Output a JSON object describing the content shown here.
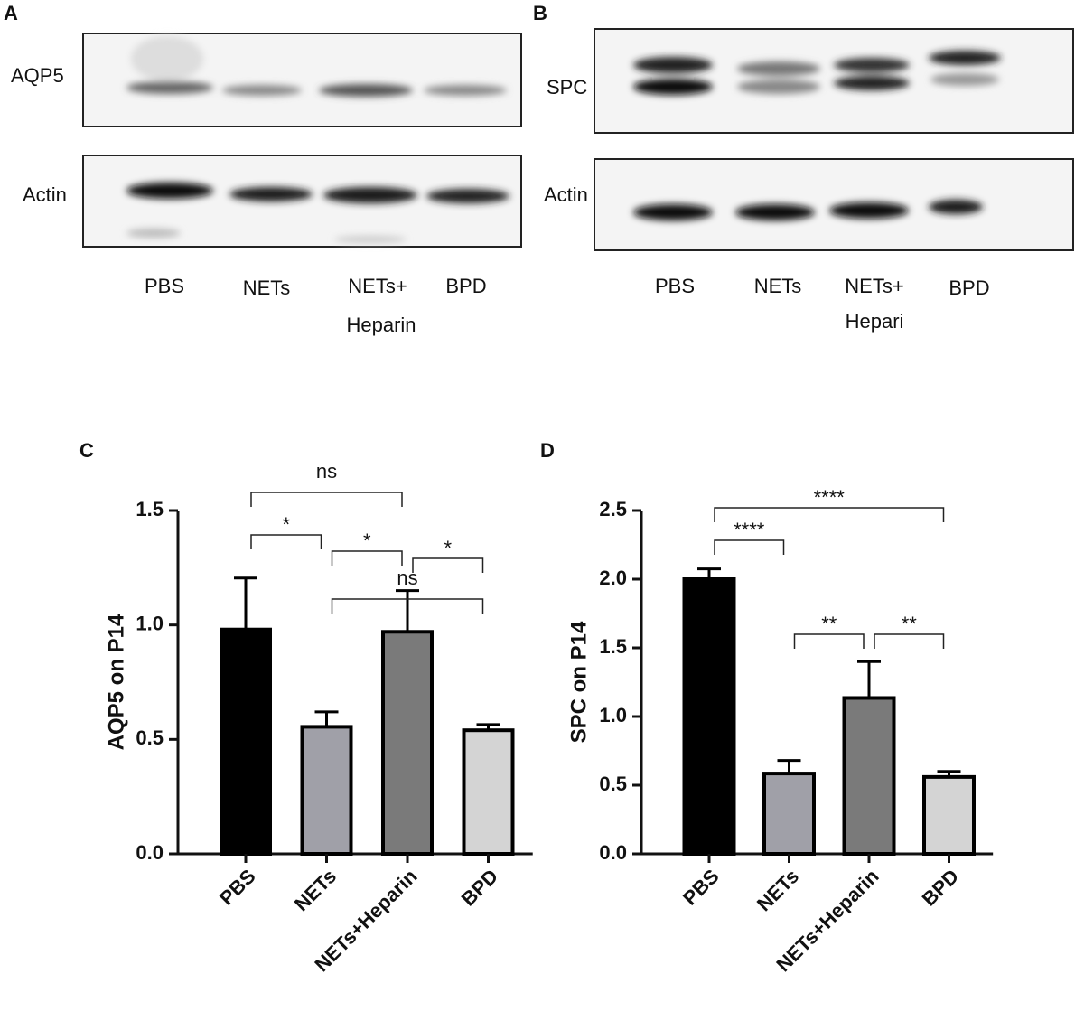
{
  "blots": [
    {
      "panel": "A",
      "rows": [
        "AQP5",
        "Actin"
      ],
      "lanes": [
        [
          "PBS"
        ],
        [
          "NETs"
        ],
        [
          "NETs+",
          "Heparin"
        ],
        [
          "BPD"
        ]
      ]
    },
    {
      "panel": "B",
      "rows": [
        "SPC",
        "Actin"
      ],
      "lanes": [
        [
          "PBS"
        ],
        [
          "NETs"
        ],
        [
          "NETs+",
          "Hepari"
        ],
        [
          "BPD"
        ]
      ]
    }
  ],
  "chart_data": [
    {
      "type": "bar",
      "panel": "C",
      "ylabel": "AQP5 on P14",
      "categories": [
        "PBS",
        "NETs",
        "NETs+Heparin",
        "BPD"
      ],
      "values": [
        0.98,
        0.555,
        0.97,
        0.54
      ],
      "errors": [
        0.225,
        0.065,
        0.18,
        0.025
      ],
      "colors": [
        "#000000",
        "#a0a0a8",
        "#7a7a7a",
        "#d4d4d4"
      ],
      "ylim": [
        0,
        1.5
      ],
      "yticks": [
        {
          "value": 0,
          "label": "0.0"
        },
        0.5,
        {
          "value": 1,
          "label": "1.0"
        },
        1.5
      ],
      "comparisons": [
        {
          "from": "PBS",
          "to": "NETs+Heparin",
          "label": "ns"
        },
        {
          "from": "PBS",
          "to": "NETs",
          "label": "*"
        },
        {
          "from": "NETs",
          "to": "NETs+Heparin",
          "label": "*"
        },
        {
          "from": "NETs+Heparin",
          "to": "BPD",
          "label": "*"
        },
        {
          "from": "NETs",
          "to": "BPD",
          "label": "ns"
        }
      ]
    },
    {
      "type": "bar",
      "panel": "D",
      "ylabel": "SPC on P14",
      "categories": [
        "PBS",
        "NETs",
        "NETs+Heparin",
        "BPD"
      ],
      "values": [
        2.0,
        0.585,
        1.135,
        0.56
      ],
      "errors": [
        0.075,
        0.095,
        0.265,
        0.04
      ],
      "colors": [
        "#000000",
        "#a0a0a8",
        "#7a7a7a",
        "#d4d4d4"
      ],
      "ylim": [
        0,
        2.5
      ],
      "yticks": [
        {
          "value": 0,
          "label": "0.0"
        },
        0.5,
        {
          "value": 1,
          "label": "1.0"
        },
        1.5,
        {
          "value": 2,
          "label": "2.0"
        },
        2.5
      ],
      "comparisons": [
        {
          "from": "PBS",
          "to": "BPD",
          "label": "****"
        },
        {
          "from": "PBS",
          "to": "NETs",
          "label": "****"
        },
        {
          "from": "NETs",
          "to": "NETs+Heparin",
          "label": "**"
        },
        {
          "from": "NETs+Heparin",
          "to": "BPD",
          "label": "**"
        }
      ]
    }
  ]
}
